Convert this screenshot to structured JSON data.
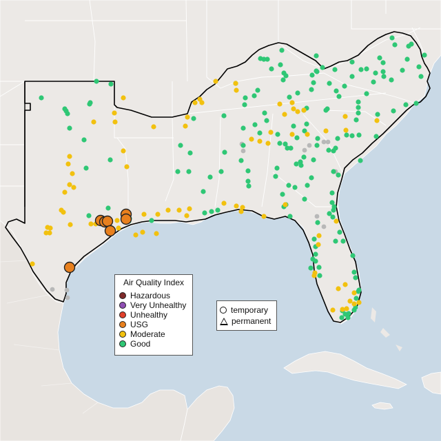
{
  "colors": {
    "water": "#c9d9e6",
    "land": "#ece9e6",
    "hazardous": "#7e2a2a",
    "very_unhealthy": "#8f4fb3",
    "unhealthy": "#e0402a",
    "usg": "#e8801e",
    "moderate": "#f2c10f",
    "good": "#2fc775",
    "no_data": "#b8b8b8"
  },
  "legend": {
    "title": "Air Quality Index",
    "items": [
      {
        "key": "hazardous",
        "label": "Hazardous"
      },
      {
        "key": "very_unhealthy",
        "label": "Very Unhealthy"
      },
      {
        "key": "unhealthy",
        "label": "Unhealthy"
      },
      {
        "key": "usg",
        "label": "USG"
      },
      {
        "key": "moderate",
        "label": "Moderate"
      },
      {
        "key": "good",
        "label": "Good"
      }
    ]
  },
  "monitor_types": {
    "temporary": "temporary",
    "permanent": "permanent"
  },
  "monitors": {
    "usg": [
      [
        146,
        320
      ],
      [
        152,
        322
      ],
      [
        156,
        321
      ],
      [
        160,
        335
      ],
      [
        183,
        311
      ],
      [
        183,
        318
      ],
      [
        101,
        388
      ]
    ],
    "moderate": [
      [
        179,
        142
      ],
      [
        136,
        177
      ],
      [
        166,
        164
      ],
      [
        167,
        177
      ],
      [
        223,
        184
      ],
      [
        179,
        219
      ],
      [
        184,
        242
      ],
      [
        101,
        227
      ],
      [
        99,
        238
      ],
      [
        105,
        252
      ],
      [
        101,
        268
      ],
      [
        107,
        272
      ],
      [
        94,
        279
      ],
      [
        92,
        308
      ],
      [
        89,
        305
      ],
      [
        69,
        330
      ],
      [
        73,
        331
      ],
      [
        72,
        338
      ],
      [
        67,
        338
      ],
      [
        102,
        326
      ],
      [
        132,
        325
      ],
      [
        139,
        325
      ],
      [
        170,
        320
      ],
      [
        172,
        331
      ],
      [
        209,
        311
      ],
      [
        229,
        311
      ],
      [
        244,
        305
      ],
      [
        260,
        305
      ],
      [
        271,
        313
      ],
      [
        275,
        303
      ],
      [
        227,
        339
      ],
      [
        207,
        337
      ],
      [
        197,
        341
      ],
      [
        47,
        383
      ],
      [
        313,
        118
      ],
      [
        342,
        121
      ],
      [
        343,
        131
      ],
      [
        406,
        151
      ],
      [
        413,
        166
      ],
      [
        424,
        149
      ],
      [
        426,
        158
      ],
      [
        432,
        162
      ],
      [
        441,
        160
      ],
      [
        393,
        192
      ],
      [
        365,
        202
      ],
      [
        377,
        205
      ],
      [
        389,
        208
      ],
      [
        424,
        195
      ],
      [
        446,
        195
      ],
      [
        473,
        190
      ],
      [
        501,
        169
      ],
      [
        502,
        189
      ],
      [
        547,
        175
      ],
      [
        293,
        149
      ],
      [
        290,
        144
      ],
      [
        283,
        149
      ],
      [
        272,
        170
      ],
      [
        269,
        183
      ],
      [
        343,
        299
      ],
      [
        352,
        301
      ],
      [
        383,
        314
      ],
      [
        414,
        297
      ],
      [
        463,
        342
      ],
      [
        488,
        321
      ],
      [
        456,
        400
      ],
      [
        457,
        396
      ],
      [
        491,
        419
      ],
      [
        501,
        413
      ],
      [
        514,
        425
      ],
      [
        521,
        439
      ],
      [
        508,
        437
      ],
      [
        514,
        441
      ],
      [
        503,
        448
      ],
      [
        497,
        449
      ],
      [
        483,
        450
      ],
      [
        325,
        295
      ],
      [
        350,
        307
      ],
      [
        462,
        355
      ]
    ],
    "good": [
      [
        60,
        142
      ],
      [
        96,
        161
      ],
      [
        94,
        158
      ],
      [
        98,
        165
      ],
      [
        101,
        186
      ],
      [
        122,
        203
      ],
      [
        125,
        244
      ],
      [
        130,
        151
      ],
      [
        131,
        149
      ],
      [
        160,
        232
      ],
      [
        157,
        302
      ],
      [
        140,
        118
      ],
      [
        161,
        122
      ],
      [
        129,
        313
      ],
      [
        187,
        321
      ],
      [
        188,
        317
      ],
      [
        220,
        320
      ],
      [
        258,
        249
      ],
      [
        262,
        211
      ],
      [
        281,
        172
      ],
      [
        274,
        249
      ],
      [
        276,
        222
      ],
      [
        305,
        257
      ],
      [
        295,
        278
      ],
      [
        307,
        307
      ],
      [
        316,
        305
      ],
      [
        297,
        309
      ],
      [
        325,
        168
      ],
      [
        321,
        249
      ],
      [
        326,
        221
      ],
      [
        342,
        121
      ],
      [
        350,
        233
      ],
      [
        353,
        211
      ],
      [
        353,
        186
      ],
      [
        355,
        152
      ],
      [
        356,
        142
      ],
      [
        360,
        248
      ],
      [
        360,
        263
      ],
      [
        361,
        270
      ],
      [
        374,
        131
      ],
      [
        369,
        139
      ],
      [
        378,
        85
      ],
      [
        383,
        86
      ],
      [
        388,
        86
      ],
      [
        394,
        100
      ],
      [
        407,
        94
      ],
      [
        409,
        73
      ],
      [
        412,
        106
      ],
      [
        411,
        116
      ],
      [
        415,
        110
      ],
      [
        420,
        141
      ],
      [
        432,
        135
      ],
      [
        431,
        200
      ],
      [
        441,
        228
      ],
      [
        442,
        190
      ],
      [
        445,
        180
      ],
      [
        452,
        130
      ],
      [
        453,
        109
      ],
      [
        455,
        120
      ],
      [
        459,
        81
      ],
      [
        460,
        104
      ],
      [
        459,
        103
      ],
      [
        468,
        98
      ],
      [
        478,
        121
      ],
      [
        486,
        101
      ],
      [
        488,
        132
      ],
      [
        492,
        140
      ],
      [
        500,
        125
      ],
      [
        511,
        90
      ],
      [
        511,
        111
      ],
      [
        520,
        148
      ],
      [
        524,
        101
      ],
      [
        532,
        100
      ],
      [
        532,
        136
      ],
      [
        542,
        119
      ],
      [
        545,
        106
      ],
      [
        551,
        84
      ],
      [
        556,
        91
      ],
      [
        556,
        104
      ],
      [
        557,
        111
      ],
      [
        568,
        116
      ],
      [
        569,
        55
      ],
      [
        573,
        65
      ],
      [
        584,
        102
      ],
      [
        589,
        152
      ],
      [
        591,
        86
      ],
      [
        593,
        67
      ],
      [
        597,
        64
      ],
      [
        604,
        150
      ],
      [
        608,
        97
      ],
      [
        611,
        111
      ],
      [
        616,
        80
      ],
      [
        511,
        197
      ],
      [
        520,
        156
      ],
      [
        520,
        164
      ],
      [
        517,
        174
      ],
      [
        521,
        196
      ],
      [
        503,
        196
      ],
      [
        490,
        201
      ],
      [
        487,
        215
      ],
      [
        484,
        219
      ],
      [
        477,
        218
      ],
      [
        475,
        158
      ],
      [
        473,
        160
      ],
      [
        441,
        160
      ],
      [
        445,
        157
      ],
      [
        426,
        183
      ],
      [
        403,
        195
      ],
      [
        406,
        208
      ],
      [
        414,
        209
      ],
      [
        417,
        215
      ],
      [
        422,
        215
      ],
      [
        430,
        238
      ],
      [
        437,
        240
      ],
      [
        436,
        235
      ],
      [
        455,
        232
      ],
      [
        460,
        211
      ],
      [
        461,
        201
      ],
      [
        377,
        193
      ],
      [
        370,
        181
      ],
      [
        384,
        164
      ],
      [
        387,
        175
      ],
      [
        402,
        244
      ],
      [
        419,
        269
      ],
      [
        428,
        272
      ],
      [
        400,
        256
      ],
      [
        410,
        282
      ],
      [
        412,
        300
      ],
      [
        415,
        297
      ],
      [
        421,
        314
      ],
      [
        442,
        289
      ],
      [
        446,
        269
      ],
      [
        452,
        258
      ],
      [
        478,
        310
      ],
      [
        484,
        305
      ],
      [
        483,
        315
      ],
      [
        485,
        300
      ],
      [
        482,
        294
      ],
      [
        482,
        280
      ],
      [
        484,
        249
      ],
      [
        491,
        254
      ],
      [
        493,
        337
      ],
      [
        498,
        350
      ],
      [
        487,
        350
      ],
      [
        461,
        323
      ],
      [
        456,
        347
      ],
      [
        458,
        358
      ],
      [
        451,
        389
      ],
      [
        458,
        369
      ],
      [
        458,
        379
      ],
      [
        454,
        376
      ],
      [
        463,
        388
      ],
      [
        464,
        400
      ],
      [
        512,
        371
      ],
      [
        514,
        395
      ],
      [
        516,
        403
      ],
      [
        521,
        421
      ],
      [
        520,
        423
      ],
      [
        517,
        433
      ],
      [
        516,
        446
      ],
      [
        514,
        450
      ],
      [
        506,
        455
      ],
      [
        505,
        461
      ],
      [
        496,
        461
      ],
      [
        501,
        456
      ],
      [
        497,
        451
      ],
      [
        523,
        233
      ],
      [
        546,
        198
      ],
      [
        548,
        166
      ],
      [
        571,
        161
      ]
    ],
    "no_data": [
      [
        353,
        219
      ],
      [
        449,
        211
      ],
      [
        470,
        206
      ],
      [
        476,
        206
      ],
      [
        487,
        249
      ],
      [
        460,
        314
      ],
      [
        470,
        329
      ],
      [
        76,
        420
      ],
      [
        97,
        421
      ],
      [
        98,
        432
      ],
      [
        351,
        209
      ],
      [
        442,
        218
      ]
    ]
  }
}
